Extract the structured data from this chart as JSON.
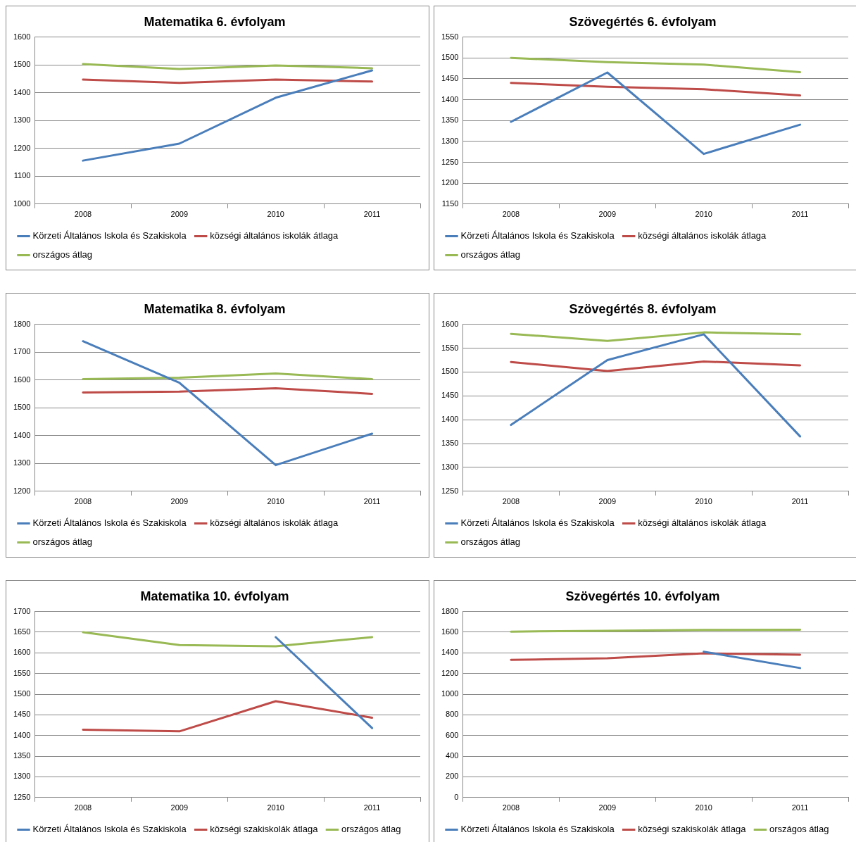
{
  "chart_data": [
    {
      "type": "line",
      "title": "Matematika 6. évfolyam",
      "categories": [
        "2008",
        "2009",
        "2010",
        "2011"
      ],
      "ylim": [
        1000,
        1600
      ],
      "yticks": [
        1000,
        1100,
        1200,
        1300,
        1400,
        1500,
        1600
      ],
      "grid": "y",
      "legend": "bottom",
      "series": [
        {
          "name": "Körzeti Általános Iskola és Szakiskola",
          "color": "#4a7ebb",
          "values": [
            1156,
            1217,
            1382,
            1480
          ]
        },
        {
          "name": "községi általános iskolák átlaga",
          "color": "#be4b48",
          "values": [
            1447,
            1435,
            1447,
            1440
          ]
        },
        {
          "name": "országos átlag",
          "color": "#98b954",
          "values": [
            1503,
            1485,
            1498,
            1488
          ]
        }
      ]
    },
    {
      "type": "line",
      "title": "Szövegértés 6. évfolyam",
      "categories": [
        "2008",
        "2009",
        "2010",
        "2011"
      ],
      "ylim": [
        1150,
        1550
      ],
      "yticks": [
        1150,
        1200,
        1250,
        1300,
        1350,
        1400,
        1450,
        1500,
        1550
      ],
      "grid": "y",
      "legend": "bottom",
      "series": [
        {
          "name": "Körzeti Általános Iskola és Szakiskola",
          "color": "#4a7ebb",
          "values": [
            1347,
            1465,
            1270,
            1340
          ]
        },
        {
          "name": "községi általános iskolák átlaga",
          "color": "#be4b48",
          "values": [
            1440,
            1431,
            1425,
            1410
          ]
        },
        {
          "name": "országos átlag",
          "color": "#98b954",
          "values": [
            1500,
            1490,
            1484,
            1466
          ]
        }
      ]
    },
    {
      "type": "line",
      "title": "Matematika 8. évfolyam",
      "categories": [
        "2008",
        "2009",
        "2010",
        "2011"
      ],
      "ylim": [
        1200,
        1800
      ],
      "yticks": [
        1200,
        1300,
        1400,
        1500,
        1600,
        1700,
        1800
      ],
      "grid": "y",
      "legend": "bottom",
      "series": [
        {
          "name": "Körzeti Általános Iskola és Szakiskola",
          "color": "#4a7ebb",
          "values": [
            1739,
            1590,
            1294,
            1407
          ]
        },
        {
          "name": "községi általános iskolák átlaga",
          "color": "#be4b48",
          "values": [
            1555,
            1558,
            1570,
            1550
          ]
        },
        {
          "name": "országos átlag",
          "color": "#98b954",
          "values": [
            1603,
            1608,
            1623,
            1603
          ]
        }
      ]
    },
    {
      "type": "line",
      "title": "Szövegértés 8. évfolyam",
      "categories": [
        "2008",
        "2009",
        "2010",
        "2011"
      ],
      "ylim": [
        1250,
        1600
      ],
      "yticks": [
        1250,
        1300,
        1350,
        1400,
        1450,
        1500,
        1550,
        1600
      ],
      "grid": "y",
      "legend": "bottom",
      "series": [
        {
          "name": "Körzeti Általános Iskola és Szakiskola",
          "color": "#4a7ebb",
          "values": [
            1389,
            1525,
            1579,
            1365
          ]
        },
        {
          "name": "községi általános iskolák átlaga",
          "color": "#be4b48",
          "values": [
            1521,
            1502,
            1522,
            1514
          ]
        },
        {
          "name": "országos átlag",
          "color": "#98b954",
          "values": [
            1580,
            1565,
            1583,
            1579
          ]
        }
      ]
    },
    {
      "type": "line",
      "title": "Matematika 10. évfolyam",
      "categories": [
        "2008",
        "2009",
        "2010",
        "2011"
      ],
      "ylim": [
        1250,
        1700
      ],
      "yticks": [
        1250,
        1300,
        1350,
        1400,
        1450,
        1500,
        1550,
        1600,
        1650,
        1700
      ],
      "grid": "y",
      "legend": "bottom",
      "series": [
        {
          "name": "Körzeti Általános Iskola és Szakiskola",
          "color": "#4a7ebb",
          "values": [
            null,
            null,
            1638,
            1418
          ]
        },
        {
          "name": "községi szakiskolák átlaga",
          "color": "#be4b48",
          "values": [
            1414,
            1410,
            1483,
            1443
          ]
        },
        {
          "name": "országos átlag",
          "color": "#98b954",
          "values": [
            1650,
            1619,
            1616,
            1638
          ]
        }
      ]
    },
    {
      "type": "line",
      "title": "Szövegértés 10. évfolyam",
      "categories": [
        "2008",
        "2009",
        "2010",
        "2011"
      ],
      "ylim": [
        0,
        1800
      ],
      "yticks": [
        0,
        200,
        400,
        600,
        800,
        1000,
        1200,
        1400,
        1600,
        1800
      ],
      "grid": "y",
      "legend": "bottom",
      "series": [
        {
          "name": "Körzeti Általános Iskola és Szakiskola",
          "color": "#4a7ebb",
          "values": [
            null,
            null,
            1411,
            1253
          ]
        },
        {
          "name": "községi szakiskolák átlaga",
          "color": "#be4b48",
          "values": [
            1332,
            1347,
            1396,
            1381
          ]
        },
        {
          "name": "országos átlag",
          "color": "#98b954",
          "values": [
            1605,
            1614,
            1621,
            1624
          ]
        }
      ]
    }
  ]
}
